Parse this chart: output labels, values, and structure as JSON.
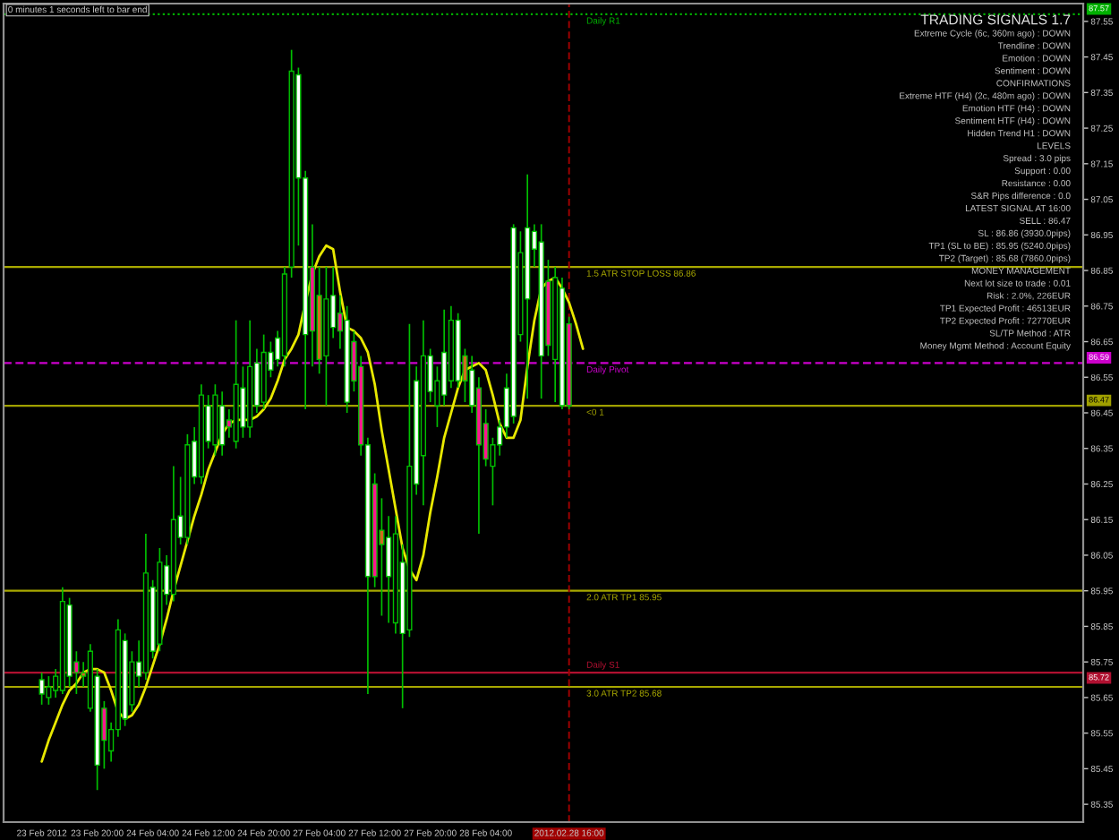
{
  "chart_data": [
    {
      "type": "candlestick",
      "categories": [
        "23 Feb 2012",
        null,
        null,
        null,
        null,
        null,
        null,
        null,
        "23 Feb 20:00",
        null,
        null,
        null,
        null,
        null,
        null,
        null,
        "24 Feb 04:00",
        null,
        null,
        null,
        null,
        null,
        null,
        null,
        "24 Feb 12:00",
        null,
        null,
        null,
        null,
        null,
        null,
        null,
        "24 Feb 20:00",
        null,
        null,
        null,
        null,
        null,
        null,
        null,
        "27 Feb 04:00",
        null,
        null,
        null,
        null,
        null,
        null,
        null,
        "27 Feb 12:00",
        null,
        null,
        null,
        null,
        null,
        null,
        null,
        "27 Feb 20:00",
        null,
        null,
        null,
        null,
        null,
        null,
        null,
        "28 Feb 04:00",
        null,
        null,
        null,
        null,
        null,
        null,
        null,
        null,
        null,
        null,
        null,
        "2012.02.28 16:00",
        null,
        null
      ],
      "ohlc": [
        [
          85.7,
          85.72,
          85.63,
          85.66
        ],
        [
          85.65,
          85.71,
          85.63,
          85.68
        ],
        [
          85.67,
          85.73,
          85.65,
          85.71
        ],
        [
          85.67,
          85.96,
          85.66,
          85.92
        ],
        [
          85.91,
          85.93,
          85.68,
          85.71
        ],
        [
          85.75,
          85.78,
          85.66,
          85.72
        ],
        [
          85.72,
          85.75,
          85.68,
          85.71
        ],
        [
          85.62,
          85.8,
          85.61,
          85.78
        ],
        [
          85.71,
          85.73,
          85.39,
          85.46
        ],
        [
          85.62,
          85.64,
          85.45,
          85.53
        ],
        [
          85.5,
          85.58,
          85.47,
          85.56
        ],
        [
          85.56,
          85.87,
          85.54,
          85.84
        ],
        [
          85.81,
          85.83,
          85.57,
          85.59
        ],
        [
          85.63,
          85.78,
          85.61,
          85.75
        ],
        [
          85.75,
          85.81,
          85.68,
          85.71
        ],
        [
          85.72,
          86.11,
          85.7,
          86.0
        ],
        [
          85.96,
          85.98,
          85.76,
          85.78
        ],
        [
          85.8,
          86.07,
          85.78,
          86.03
        ],
        [
          86.02,
          86.05,
          85.91,
          85.94
        ],
        [
          85.94,
          86.3,
          85.92,
          86.15
        ],
        [
          86.16,
          86.27,
          86.08,
          86.1
        ],
        [
          86.1,
          86.39,
          86.08,
          86.36
        ],
        [
          86.37,
          86.41,
          86.25,
          86.27
        ],
        [
          86.27,
          86.53,
          86.25,
          86.5
        ],
        [
          86.47,
          86.5,
          86.35,
          86.37
        ],
        [
          86.36,
          86.53,
          86.33,
          86.5
        ],
        [
          86.47,
          86.51,
          86.33,
          86.36
        ],
        [
          86.43,
          86.46,
          86.38,
          86.41
        ],
        [
          86.37,
          86.71,
          86.35,
          86.53
        ],
        [
          86.52,
          86.58,
          86.38,
          86.41
        ],
        [
          86.41,
          86.71,
          86.38,
          86.58
        ],
        [
          86.59,
          86.63,
          86.45,
          86.47
        ],
        [
          86.48,
          86.67,
          86.46,
          86.62
        ],
        [
          86.62,
          86.65,
          86.55,
          86.57
        ],
        [
          86.66,
          86.68,
          86.58,
          86.6
        ],
        [
          86.61,
          86.86,
          86.58,
          86.84
        ],
        [
          86.86,
          87.47,
          86.83,
          87.41
        ],
        [
          87.4,
          87.42,
          86.92,
          87.11
        ],
        [
          87.11,
          87.13,
          86.46,
          86.67
        ],
        [
          86.86,
          86.98,
          86.58,
          86.68
        ],
        [
          86.78,
          86.86,
          86.56,
          86.6
        ],
        [
          86.61,
          86.86,
          86.47,
          86.77
        ],
        [
          86.78,
          86.86,
          86.66,
          86.69
        ],
        [
          86.73,
          86.78,
          86.63,
          86.68
        ],
        [
          86.71,
          86.75,
          86.45,
          86.48
        ],
        [
          86.65,
          86.68,
          86.51,
          86.54
        ],
        [
          86.58,
          86.61,
          86.33,
          86.36
        ],
        [
          86.36,
          86.38,
          85.66,
          85.99
        ],
        [
          86.25,
          86.28,
          85.96,
          85.99
        ],
        [
          86.12,
          86.21,
          85.88,
          86.08
        ],
        [
          86.1,
          86.16,
          85.86,
          85.99
        ],
        [
          85.86,
          86.16,
          85.83,
          86.11
        ],
        [
          86.03,
          86.08,
          85.62,
          85.83
        ],
        [
          85.84,
          86.7,
          85.82,
          86.3
        ],
        [
          86.54,
          86.58,
          86.22,
          86.25
        ],
        [
          86.33,
          86.71,
          86.19,
          86.61
        ],
        [
          86.61,
          86.63,
          86.48,
          86.51
        ],
        [
          86.47,
          86.58,
          86.41,
          86.54
        ],
        [
          86.62,
          86.74,
          86.47,
          86.5
        ],
        [
          86.54,
          86.75,
          86.52,
          86.71
        ],
        [
          86.71,
          86.73,
          86.52,
          86.54
        ],
        [
          86.61,
          86.63,
          86.48,
          86.54
        ],
        [
          86.57,
          86.61,
          86.45,
          86.47
        ],
        [
          86.52,
          86.55,
          86.11,
          86.36
        ],
        [
          86.42,
          86.46,
          86.3,
          86.32
        ],
        [
          86.3,
          86.38,
          86.19,
          86.36
        ],
        [
          86.41,
          86.43,
          86.33,
          86.36
        ],
        [
          86.52,
          86.56,
          86.38,
          86.41
        ],
        [
          86.97,
          86.98,
          86.42,
          86.44
        ],
        [
          86.67,
          86.96,
          86.65,
          86.9
        ],
        [
          86.97,
          87.12,
          86.49,
          86.77
        ],
        [
          86.96,
          86.98,
          86.86,
          86.91
        ],
        [
          86.93,
          86.98,
          86.49,
          86.61
        ],
        [
          86.82,
          86.88,
          86.61,
          86.64
        ],
        [
          86.6,
          86.86,
          86.48,
          86.83
        ],
        [
          86.8,
          86.83,
          86.46,
          86.47
        ],
        [
          86.7,
          86.72,
          86.46,
          86.47
        ],
        null,
        null
      ],
      "color": "#00c000",
      "colors": [
        "#ffffff",
        "#000000",
        "#000000",
        "#000000",
        "#ffffff",
        "#ff1493",
        "#d2691e",
        "#000000",
        "#ffffff",
        "#ff1493",
        "#000000",
        "#000000",
        "#ffffff",
        "#000000",
        "#ffffff",
        "#000000",
        "#ffffff",
        "#000000",
        "#ffffff",
        "#000000",
        "#ffffff",
        "#000000",
        "#ffffff",
        "#000000",
        "#ffffff",
        "#000000",
        "#ffffff",
        "#ff1493",
        "#000000",
        "#ffffff",
        "#000000",
        "#ffffff",
        "#000000",
        "#ffffff",
        "#ffffff",
        "#000000",
        "#000000",
        "#ffffff",
        "#ffffff",
        "#ff1493",
        "#d2691e",
        "#000000",
        "#ffffff",
        "#ff1493",
        "#ffffff",
        "#ff1493",
        "#ff1493",
        "#ffffff",
        "#ff1493",
        "#d2691e",
        "#ffffff",
        "#000000",
        "#ffffff",
        "#000000",
        "#ffffff",
        "#000000",
        "#ffffff",
        "#000000",
        "#ffffff",
        "#000000",
        "#ffffff",
        "#d2691e",
        "#ffffff",
        "#ff1493",
        "#ff1493",
        "#000000",
        "#ffffff",
        "#ffffff",
        "#ffffff",
        "#000000",
        "#ffffff",
        "#ffffff",
        "#ffffff",
        "#ff1493",
        "#000000",
        "#ffffff",
        "#ff1493",
        null,
        null
      ],
      "series": [
        {
          "type": "line",
          "color": "#e8e800",
          "values": [
            85.47,
            85.53,
            85.58,
            85.63,
            85.67,
            85.69,
            85.72,
            85.73,
            85.73,
            85.72,
            85.67,
            85.61,
            85.59,
            85.6,
            85.63,
            85.68,
            85.74,
            85.8,
            85.87,
            85.95,
            86.02,
            86.09,
            86.16,
            86.22,
            86.29,
            86.34,
            86.39,
            86.42,
            86.43,
            86.43,
            86.43,
            86.44,
            86.46,
            86.49,
            86.54,
            86.6,
            86.63,
            86.67,
            86.76,
            86.84,
            86.89,
            86.92,
            86.91,
            86.79,
            86.69,
            86.68,
            86.66,
            86.62,
            86.53,
            86.4,
            86.29,
            86.18,
            86.07,
            86.01,
            85.98,
            86.05,
            86.17,
            86.27,
            86.38,
            86.45,
            86.52,
            86.57,
            86.58,
            86.59,
            86.57,
            86.5,
            86.42,
            86.38,
            86.38,
            86.43,
            86.58,
            86.71,
            86.8,
            86.82,
            86.83,
            86.8,
            86.76,
            86.7,
            86.63
          ]
        }
      ],
      "ylim": [
        85.3,
        87.6
      ],
      "yticks": [
        85.35,
        85.45,
        85.55,
        85.65,
        85.75,
        85.85,
        85.95,
        86.05,
        86.15,
        86.25,
        86.35,
        86.45,
        86.55,
        86.65,
        86.75,
        86.85,
        86.95,
        87.05,
        87.15,
        87.25,
        87.35,
        87.45,
        87.55
      ],
      "ref_lines": [
        {
          "axis": "y",
          "value": 87.57,
          "label": "87.57",
          "color": "#00b000",
          "line_style": "dotted"
        },
        {
          "axis": "y",
          "value": 86.86,
          "color": "#a8a800",
          "line_style": "solid"
        },
        {
          "axis": "y",
          "value": 86.59,
          "label": "86.59",
          "color": "#cc00cc",
          "line_style": "dashed"
        },
        {
          "axis": "y",
          "value": 86.47,
          "label": "86.47",
          "color": "#a0a000",
          "line_style": "solid"
        },
        {
          "axis": "y",
          "value": 85.95,
          "color": "#a8a800",
          "line_style": "solid"
        },
        {
          "axis": "y",
          "value": 85.72,
          "label": "85.72",
          "color": "#b01030",
          "line_style": "solid"
        },
        {
          "axis": "y",
          "value": 85.68,
          "color": "#a8a800",
          "line_style": "solid"
        },
        {
          "axis": "x",
          "value": "2012.02.28 16:00",
          "color": "#a00000",
          "line_style": "dashed"
        }
      ],
      "annotations": [
        "0 minutes 1 seconds left to bar end",
        {
          "text": "Daily R1",
          "y": 87.57
        },
        {
          "text": "1.5 ATR STOP LOSS 86.86",
          "y": 86.86
        },
        {
          "text": "Daily Pivot",
          "y": 86.59
        },
        {
          "text": "<0 1",
          "y": 86.47
        },
        {
          "text": "2.0 ATR TP1 85.95",
          "y": 85.95
        },
        {
          "text": "Daily S1",
          "y": 85.72
        },
        {
          "text": "3.0 ATR TP2 85.68",
          "y": 85.68
        }
      ]
    },
    {
      "type": "other",
      "title": "TRADING SIGNALS 1.7",
      "annotations": [
        "Extreme Cycle (6c, 360m ago) : DOWN",
        "Trendline : DOWN",
        "Emotion : DOWN",
        "Sentiment : DOWN",
        "CONFIRMATIONS",
        "Extreme HTF (H4) (2c, 480m ago) : DOWN",
        "Emotion HTF (H4) : DOWN",
        "Sentiment HTF (H4) : DOWN",
        "Hidden Trend H1 : DOWN",
        "LEVELS",
        "Spread : 3.0 pips",
        "Support : 0.00",
        "Resistance : 0.00",
        "S&R Pips difference : 0.0",
        "LATEST SIGNAL AT 16:00",
        "SELL : 86.47",
        "SL : 86.86 (3930.0pips)",
        "TP1 (SL to BE) : 85.95 (5240.0pips)",
        "TP2 (Target) : 85.68 (7860.0pips)",
        "MONEY MANAGEMENT",
        "Next lot size to trade : 0.01",
        "Risk : 2.0%, 226EUR",
        "TP1 Expected Profit : 46513EUR",
        "TP2 Expected Profit : 72770EUR",
        "SL/TP Method : ATR",
        "Money Mgmt Method : Account Equity"
      ]
    }
  ]
}
